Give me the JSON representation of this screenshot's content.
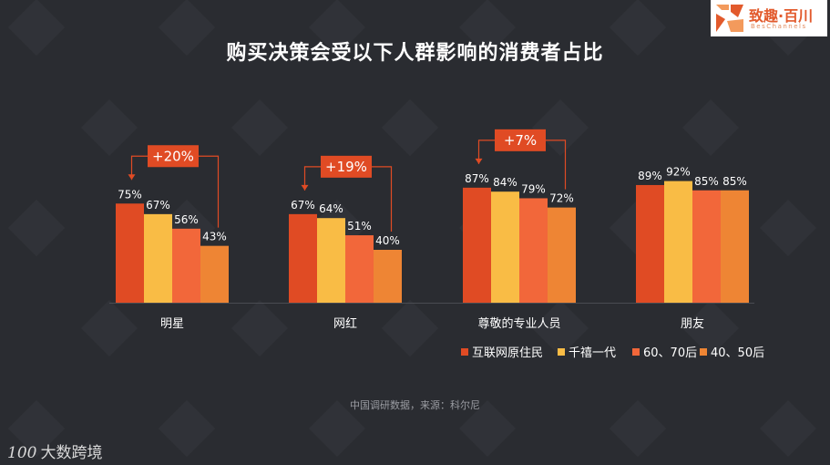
{
  "title": "购买决策会受以下人群影响的消费者占比",
  "source": "中国调研数据，来源：科尔尼",
  "brand": {
    "name": "致趣·百川",
    "sub": "BesChannels",
    "accent": "#e25a2c"
  },
  "watermark": {
    "mark": "100",
    "name": "大数跨境"
  },
  "chart_data": {
    "type": "bar",
    "categories": [
      "明星",
      "网红",
      "尊敬的专业人员",
      "朋友"
    ],
    "series": [
      {
        "name": "互联网原住民",
        "color": "#e04b24",
        "values": [
          75,
          67,
          87,
          89
        ]
      },
      {
        "name": "千禧一代",
        "color": "#f9bc45",
        "values": [
          67,
          64,
          84,
          92
        ]
      },
      {
        "name": "60、70后",
        "color": "#f2673a",
        "values": [
          56,
          51,
          79,
          85
        ]
      },
      {
        "name": "40、50后",
        "color": "#ee8534",
        "values": [
          43,
          40,
          72,
          85
        ]
      }
    ],
    "value_suffix": "%",
    "ylim": [
      0,
      100
    ],
    "legend_position": "bottom-right",
    "annotations": [
      {
        "category": 0,
        "text": "+20%"
      },
      {
        "category": 1,
        "text": "+19%"
      },
      {
        "category": 2,
        "text": "+7%"
      }
    ]
  }
}
